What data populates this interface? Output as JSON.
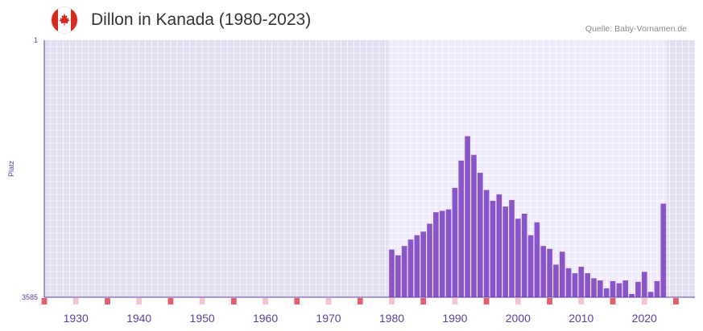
{
  "header": {
    "title": "Dillon in Kanada (1980-2023)",
    "source": "Quelle: Baby-Vornamen.de",
    "flag_icon": "canada-flag-icon"
  },
  "colors": {
    "bar": "#8a55c9",
    "axis": "#5b3fa0",
    "marker": "#e06070",
    "marker_light": "#f3c6cf",
    "bg_inactive": "#e3def0",
    "bg_active": "#efeafb"
  },
  "chart_data": {
    "type": "bar",
    "title": "Dillon in Kanada (1980-2023)",
    "xlabel": "",
    "ylabel": "Platz",
    "y_axis": {
      "top_label": "1",
      "bottom_label": "3585",
      "inverted": true,
      "range": [
        1,
        3585
      ]
    },
    "x_range": [
      1925,
      2028
    ],
    "x_tick_labels": [
      "1930",
      "1940",
      "1950",
      "1960",
      "1970",
      "1980",
      "1990",
      "2000",
      "2010",
      "2020"
    ],
    "x": [
      1980,
      1981,
      1982,
      1983,
      1984,
      1985,
      1986,
      1987,
      1988,
      1989,
      1990,
      1991,
      1992,
      1993,
      1994,
      1995,
      1996,
      1997,
      1998,
      1999,
      2000,
      2001,
      2002,
      2003,
      2004,
      2005,
      2006,
      2007,
      2008,
      2009,
      2010,
      2011,
      2012,
      2013,
      2014,
      2015,
      2016,
      2017,
      2018,
      2019,
      2020,
      2021,
      2022,
      2023
    ],
    "values": [
      2920,
      3000,
      2870,
      2780,
      2720,
      2670,
      2560,
      2400,
      2380,
      2360,
      2060,
      1680,
      1340,
      1600,
      1850,
      2090,
      2240,
      2150,
      2320,
      2230,
      2490,
      2420,
      2720,
      2540,
      2870,
      2910,
      3130,
      2950,
      3180,
      3250,
      3160,
      3250,
      3320,
      3350,
      3460,
      3360,
      3390,
      3350,
      3540,
      3370,
      3230,
      3510,
      3360,
      2280
    ],
    "marker_years_major": [
      1925,
      1935,
      1945,
      1955,
      1965,
      1975,
      1985,
      1995,
      2005,
      2015,
      2025
    ],
    "marker_years_minor": [
      1930,
      1940,
      1950,
      1960,
      1970,
      1980,
      1990,
      2000,
      2010,
      2020
    ]
  }
}
